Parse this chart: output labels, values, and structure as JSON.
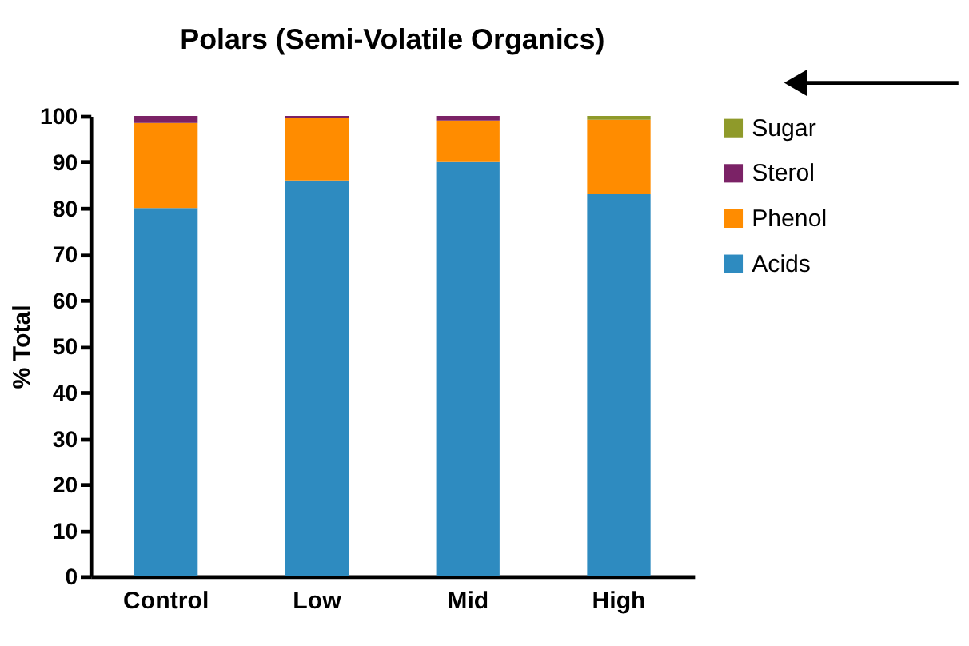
{
  "chart_data": {
    "type": "bar",
    "title": "Polars (Semi-Volatile Organics)",
    "ylabel": "% Total",
    "categories": [
      "Control",
      "Low",
      "Mid",
      "High"
    ],
    "stacked": true,
    "series": [
      {
        "name": "Acids",
        "color": "#2e8bc0",
        "values": [
          80,
          86,
          90,
          83
        ]
      },
      {
        "name": "Phenol",
        "color": "#ff8c00",
        "values": [
          18.5,
          13.6,
          9,
          16.2
        ]
      },
      {
        "name": "Sterol",
        "color": "#7b2266",
        "values": [
          1.5,
          0.4,
          1,
          0
        ]
      },
      {
        "name": "Sugar",
        "color": "#8f9a2a",
        "values": [
          0,
          0,
          0,
          0.8
        ]
      }
    ],
    "ylim": [
      0,
      100
    ],
    "yticks": [
      0,
      10,
      20,
      30,
      40,
      50,
      60,
      70,
      80,
      90,
      100
    ],
    "grid": false,
    "legend": "right"
  }
}
